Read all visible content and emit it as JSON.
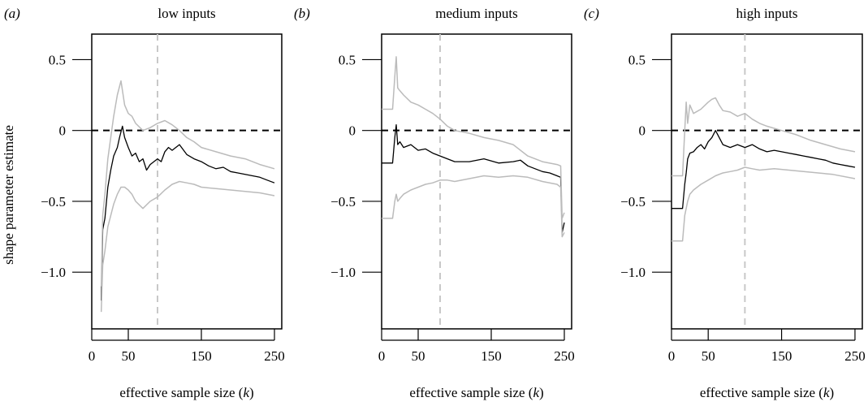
{
  "figure": {
    "ylabel": "shape parameter estimate",
    "xlabel": "effective sample size (k)"
  },
  "chart_data": [
    {
      "type": "line",
      "panel_letter": "(a)",
      "title": "low inputs",
      "xlabel": "effective sample size (k)",
      "ylabel": "shape parameter estimate",
      "xlim": [
        0,
        260
      ],
      "ylim": [
        -1.4,
        0.68
      ],
      "xticks": [
        0,
        50,
        150,
        250
      ],
      "yticks": [
        0.5,
        0,
        -0.5,
        -1.0
      ],
      "ytick_labels": [
        "0.5",
        "0",
        "−0.5",
        "−1.0"
      ],
      "reference_hline": 0,
      "vline_x": 90,
      "grid": false,
      "series": [
        {
          "role": "estimate",
          "color": "#000000",
          "x": [
            13,
            15,
            18,
            22,
            26,
            30,
            35,
            38,
            42,
            45,
            50,
            55,
            60,
            65,
            70,
            75,
            80,
            85,
            90,
            95,
            100,
            105,
            110,
            115,
            120,
            130,
            140,
            150,
            160,
            170,
            180,
            190,
            200,
            210,
            220,
            230,
            240,
            250
          ],
          "y": [
            -1.2,
            -0.7,
            -0.62,
            -0.4,
            -0.28,
            -0.18,
            -0.12,
            -0.05,
            0.03,
            -0.05,
            -0.12,
            -0.18,
            -0.16,
            -0.22,
            -0.2,
            -0.28,
            -0.24,
            -0.22,
            -0.2,
            -0.22,
            -0.15,
            -0.12,
            -0.14,
            -0.12,
            -0.1,
            -0.17,
            -0.2,
            -0.22,
            -0.25,
            -0.27,
            -0.26,
            -0.29,
            -0.3,
            -0.31,
            -0.32,
            -0.33,
            -0.35,
            -0.37
          ]
        },
        {
          "role": "upper_bound",
          "color": "#bbbbbb",
          "x": [
            13,
            15,
            18,
            22,
            26,
            30,
            35,
            40,
            45,
            50,
            55,
            60,
            70,
            80,
            90,
            100,
            110,
            120,
            130,
            140,
            150,
            170,
            190,
            210,
            230,
            250
          ],
          "y": [
            -1.1,
            -0.6,
            -0.45,
            -0.2,
            -0.05,
            0.1,
            0.25,
            0.35,
            0.18,
            0.12,
            0.1,
            0.05,
            0.0,
            0.02,
            0.05,
            0.07,
            0.04,
            0.0,
            -0.05,
            -0.08,
            -0.12,
            -0.15,
            -0.18,
            -0.2,
            -0.24,
            -0.27
          ]
        },
        {
          "role": "lower_bound",
          "color": "#bbbbbb",
          "x": [
            13,
            15,
            18,
            22,
            26,
            30,
            35,
            40,
            45,
            50,
            55,
            60,
            70,
            80,
            90,
            100,
            110,
            120,
            130,
            140,
            150,
            170,
            190,
            210,
            230,
            250
          ],
          "y": [
            -1.28,
            -0.95,
            -0.85,
            -0.68,
            -0.6,
            -0.52,
            -0.45,
            -0.4,
            -0.4,
            -0.42,
            -0.45,
            -0.5,
            -0.55,
            -0.5,
            -0.47,
            -0.42,
            -0.38,
            -0.36,
            -0.37,
            -0.38,
            -0.4,
            -0.41,
            -0.42,
            -0.43,
            -0.44,
            -0.46
          ]
        }
      ]
    },
    {
      "type": "line",
      "panel_letter": "(b)",
      "title": "medium inputs",
      "xlabel": "effective sample size (k)",
      "ylabel": "",
      "xlim": [
        0,
        260
      ],
      "ylim": [
        -1.4,
        0.68
      ],
      "xticks": [
        0,
        50,
        150,
        250
      ],
      "yticks": [
        0.5,
        0,
        -0.5,
        -1.0
      ],
      "ytick_labels": [
        "0.5",
        "0",
        "−0.5",
        "−1.0"
      ],
      "reference_hline": 0,
      "vline_x": 80,
      "grid": false,
      "series": [
        {
          "role": "estimate",
          "color": "#000000",
          "x": [
            0,
            15,
            18,
            20,
            22,
            25,
            30,
            40,
            50,
            60,
            70,
            80,
            90,
            100,
            120,
            140,
            160,
            180,
            190,
            200,
            210,
            220,
            230,
            240,
            245,
            247,
            250
          ],
          "y": [
            -0.23,
            -0.23,
            -0.05,
            0.04,
            -0.1,
            -0.08,
            -0.12,
            -0.1,
            -0.14,
            -0.13,
            -0.16,
            -0.18,
            -0.2,
            -0.22,
            -0.22,
            -0.2,
            -0.23,
            -0.22,
            -0.21,
            -0.25,
            -0.27,
            -0.29,
            -0.3,
            -0.32,
            -0.33,
            -0.72,
            -0.65
          ]
        },
        {
          "role": "upper_bound",
          "color": "#bbbbbb",
          "x": [
            0,
            15,
            18,
            20,
            22,
            25,
            30,
            40,
            50,
            60,
            70,
            80,
            90,
            100,
            120,
            140,
            160,
            180,
            200,
            220,
            240,
            245,
            247,
            250
          ],
          "y": [
            0.15,
            0.15,
            0.38,
            0.52,
            0.3,
            0.28,
            0.25,
            0.2,
            0.18,
            0.15,
            0.12,
            0.08,
            0.03,
            0.0,
            -0.02,
            -0.05,
            -0.07,
            -0.1,
            -0.18,
            -0.22,
            -0.24,
            -0.25,
            -0.62,
            -0.58
          ]
        },
        {
          "role": "lower_bound",
          "color": "#bbbbbb",
          "x": [
            0,
            15,
            18,
            20,
            22,
            25,
            30,
            40,
            50,
            60,
            70,
            80,
            90,
            100,
            120,
            140,
            160,
            180,
            200,
            220,
            240,
            245,
            247,
            250
          ],
          "y": [
            -0.62,
            -0.62,
            -0.5,
            -0.45,
            -0.5,
            -0.48,
            -0.45,
            -0.42,
            -0.4,
            -0.38,
            -0.37,
            -0.35,
            -0.35,
            -0.36,
            -0.34,
            -0.32,
            -0.33,
            -0.32,
            -0.33,
            -0.36,
            -0.38,
            -0.4,
            -0.75,
            -0.72
          ]
        }
      ]
    },
    {
      "type": "line",
      "panel_letter": "(c)",
      "title": "high inputs",
      "xlabel": "effective sample size (k)",
      "ylabel": "",
      "xlim": [
        0,
        260
      ],
      "ylim": [
        -1.4,
        0.68
      ],
      "xticks": [
        0,
        50,
        150,
        250
      ],
      "yticks": [
        0.5,
        0,
        -0.5,
        -1.0
      ],
      "ytick_labels": [
        "0.5",
        "0",
        "−0.5",
        "−1.0"
      ],
      "reference_hline": 0,
      "vline_x": 100,
      "grid": false,
      "series": [
        {
          "role": "estimate",
          "color": "#000000",
          "x": [
            0,
            15,
            18,
            20,
            22,
            25,
            30,
            35,
            40,
            45,
            50,
            55,
            60,
            65,
            70,
            80,
            90,
            100,
            110,
            120,
            130,
            140,
            150,
            160,
            170,
            180,
            190,
            200,
            210,
            220,
            230,
            240,
            250
          ],
          "y": [
            -0.55,
            -0.55,
            -0.38,
            -0.3,
            -0.2,
            -0.16,
            -0.15,
            -0.12,
            -0.1,
            -0.13,
            -0.08,
            -0.05,
            0.0,
            -0.05,
            -0.1,
            -0.12,
            -0.1,
            -0.12,
            -0.1,
            -0.13,
            -0.15,
            -0.14,
            -0.15,
            -0.16,
            -0.17,
            -0.18,
            -0.19,
            -0.2,
            -0.21,
            -0.23,
            -0.24,
            -0.25,
            -0.26
          ]
        },
        {
          "role": "upper_bound",
          "color": "#bbbbbb",
          "x": [
            0,
            15,
            18,
            20,
            22,
            25,
            30,
            40,
            50,
            55,
            60,
            65,
            70,
            80,
            90,
            100,
            110,
            120,
            130,
            150,
            170,
            190,
            210,
            230,
            250
          ],
          "y": [
            -0.32,
            -0.32,
            0.0,
            0.2,
            0.05,
            0.18,
            0.12,
            0.15,
            0.2,
            0.22,
            0.23,
            0.18,
            0.14,
            0.13,
            0.1,
            0.12,
            0.08,
            0.05,
            0.03,
            0.0,
            -0.03,
            -0.07,
            -0.1,
            -0.13,
            -0.15
          ]
        },
        {
          "role": "lower_bound",
          "color": "#bbbbbb",
          "x": [
            0,
            15,
            18,
            20,
            22,
            25,
            30,
            40,
            50,
            60,
            70,
            80,
            90,
            100,
            110,
            120,
            140,
            160,
            180,
            200,
            220,
            250
          ],
          "y": [
            -0.78,
            -0.78,
            -0.6,
            -0.55,
            -0.5,
            -0.45,
            -0.42,
            -0.38,
            -0.35,
            -0.32,
            -0.3,
            -0.29,
            -0.28,
            -0.26,
            -0.27,
            -0.28,
            -0.27,
            -0.28,
            -0.29,
            -0.3,
            -0.31,
            -0.34
          ]
        }
      ]
    }
  ]
}
